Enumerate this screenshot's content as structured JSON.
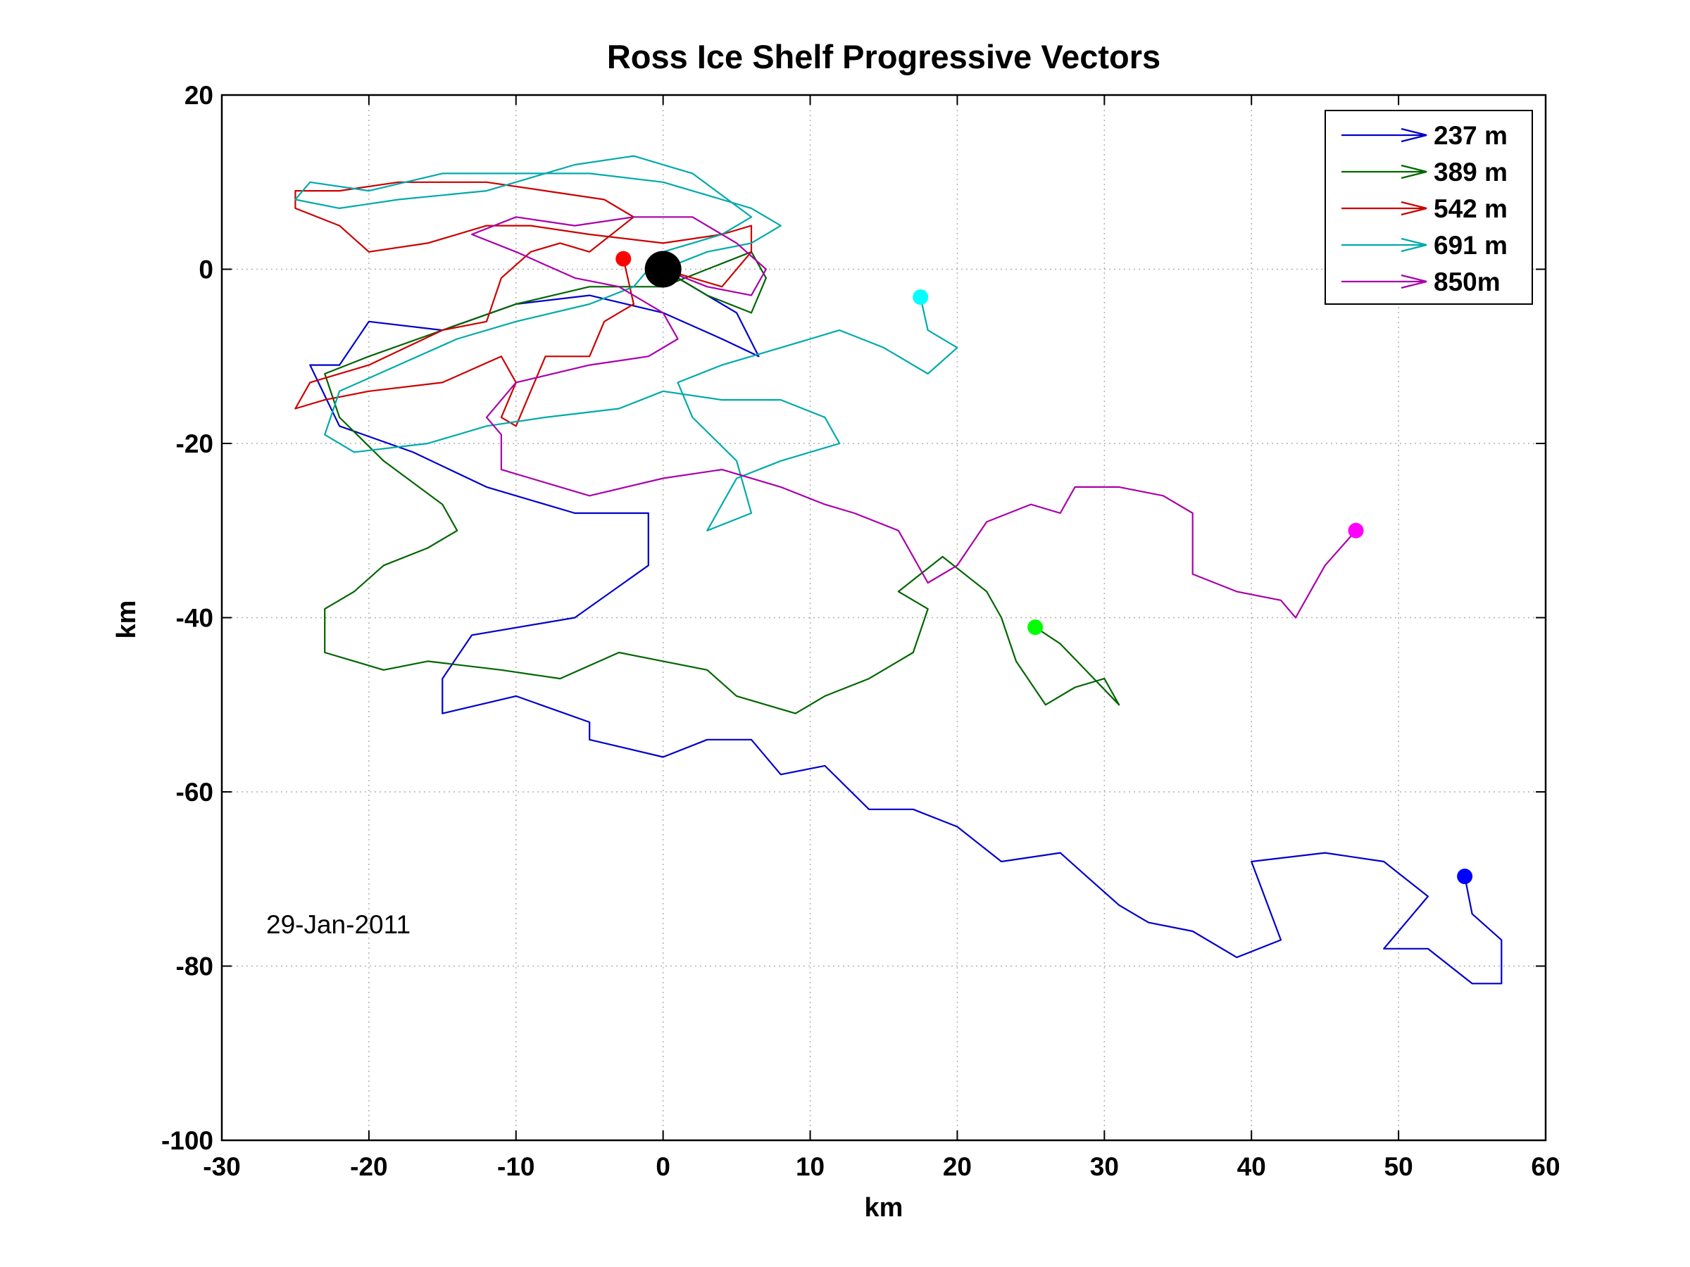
{
  "chart_data": {
    "type": "line",
    "title": "Ross Ice Shelf Progressive Vectors",
    "xlabel": "km",
    "ylabel": "km",
    "xlim": [
      -30,
      60
    ],
    "ylim": [
      -100,
      20
    ],
    "xticks": [
      -30,
      -20,
      -10,
      0,
      10,
      20,
      30,
      40,
      50,
      60
    ],
    "yticks": [
      20,
      0,
      -20,
      -40,
      -60,
      -80,
      -100
    ],
    "x_tick_labels": [
      "-30",
      "-20",
      "-10",
      "0",
      "10",
      "20",
      "30",
      "40",
      "50",
      "60"
    ],
    "y_tick_labels": [
      "20",
      "0",
      "-20",
      "-40",
      "-60",
      "-80",
      "-100"
    ],
    "grid": true,
    "legend_position": "top-right",
    "annotation": "29-Jan-2011",
    "origin_marker": {
      "x": 0,
      "y": 0,
      "color": "#000000"
    },
    "series": [
      {
        "name": "237 m",
        "color": "#0000cc",
        "end_color": "#0000ff",
        "points": [
          [
            0,
            0
          ],
          [
            2,
            -2
          ],
          [
            5,
            -5
          ],
          [
            6.5,
            -10
          ],
          [
            4,
            -8
          ],
          [
            0,
            -5
          ],
          [
            -5,
            -3
          ],
          [
            -10,
            -4
          ],
          [
            -15,
            -7
          ],
          [
            -20,
            -6
          ],
          [
            -22,
            -11
          ],
          [
            -24,
            -11
          ],
          [
            -22,
            -18
          ],
          [
            -17,
            -21
          ],
          [
            -12,
            -25
          ],
          [
            -6,
            -28
          ],
          [
            -1,
            -28
          ],
          [
            -1,
            -34
          ],
          [
            -6,
            -40
          ],
          [
            -13,
            -42
          ],
          [
            -15,
            -47
          ],
          [
            -15,
            -51
          ],
          [
            -10,
            -49
          ],
          [
            -5,
            -52
          ],
          [
            -5,
            -54
          ],
          [
            0,
            -56
          ],
          [
            3,
            -54
          ],
          [
            6,
            -54
          ],
          [
            8,
            -58
          ],
          [
            11,
            -57
          ],
          [
            14,
            -62
          ],
          [
            17,
            -62
          ],
          [
            20,
            -64
          ],
          [
            23,
            -68
          ],
          [
            27,
            -67
          ],
          [
            29,
            -70
          ],
          [
            31,
            -73
          ],
          [
            33,
            -75
          ],
          [
            36,
            -76
          ],
          [
            39,
            -79
          ],
          [
            42,
            -77
          ],
          [
            40,
            -68
          ],
          [
            45,
            -67
          ],
          [
            49,
            -68
          ],
          [
            52,
            -72
          ],
          [
            49,
            -78
          ],
          [
            52,
            -78
          ],
          [
            55,
            -82
          ],
          [
            57,
            -82
          ],
          [
            57,
            -77
          ],
          [
            55,
            -74
          ],
          [
            54.5,
            -69.7
          ]
        ]
      },
      {
        "name": "389 m",
        "color": "#006600",
        "end_color": "#00ff00",
        "points": [
          [
            0,
            0
          ],
          [
            3,
            -3
          ],
          [
            6,
            -5
          ],
          [
            7,
            -1
          ],
          [
            6,
            2
          ],
          [
            3,
            0
          ],
          [
            0,
            -2
          ],
          [
            -5,
            -2
          ],
          [
            -10,
            -4
          ],
          [
            -15,
            -7
          ],
          [
            -20,
            -10
          ],
          [
            -23,
            -12
          ],
          [
            -22,
            -17
          ],
          [
            -19,
            -22
          ],
          [
            -15,
            -27
          ],
          [
            -14,
            -30
          ],
          [
            -16,
            -32
          ],
          [
            -19,
            -34
          ],
          [
            -21,
            -37
          ],
          [
            -23,
            -39
          ],
          [
            -23,
            -44
          ],
          [
            -19,
            -46
          ],
          [
            -16,
            -45
          ],
          [
            -11,
            -46
          ],
          [
            -7,
            -47
          ],
          [
            -3,
            -44
          ],
          [
            0,
            -45
          ],
          [
            3,
            -46
          ],
          [
            5,
            -49
          ],
          [
            9,
            -51
          ],
          [
            11,
            -49
          ],
          [
            14,
            -47
          ],
          [
            17,
            -44
          ],
          [
            18,
            -39
          ],
          [
            16,
            -37
          ],
          [
            19,
            -33
          ],
          [
            22,
            -37
          ],
          [
            23,
            -40
          ],
          [
            24,
            -45
          ],
          [
            26,
            -50
          ],
          [
            28,
            -48
          ],
          [
            30,
            -47
          ],
          [
            31,
            -50
          ],
          [
            27,
            -43
          ],
          [
            25.3,
            -41.1
          ]
        ]
      },
      {
        "name": "542 m",
        "color": "#cc0000",
        "end_color": "#ff0000",
        "points": [
          [
            0,
            0
          ],
          [
            4,
            -2
          ],
          [
            6,
            2
          ],
          [
            6,
            5
          ],
          [
            4,
            4
          ],
          [
            0,
            3
          ],
          [
            -5,
            4
          ],
          [
            -9,
            5
          ],
          [
            -12,
            5
          ],
          [
            -16,
            3
          ],
          [
            -20,
            2
          ],
          [
            -22,
            5
          ],
          [
            -25,
            7
          ],
          [
            -25,
            9
          ],
          [
            -22,
            9
          ],
          [
            -18,
            10
          ],
          [
            -12,
            10
          ],
          [
            -8,
            9
          ],
          [
            -4,
            8
          ],
          [
            -2,
            6
          ],
          [
            -5,
            2
          ],
          [
            -7,
            3
          ],
          [
            -9,
            2
          ],
          [
            -11,
            -1
          ],
          [
            -12,
            -6
          ],
          [
            -15,
            -7
          ],
          [
            -20,
            -11
          ],
          [
            -24,
            -13
          ],
          [
            -25,
            -16
          ],
          [
            -23,
            -15
          ],
          [
            -20,
            -14
          ],
          [
            -15,
            -13
          ],
          [
            -11,
            -10
          ],
          [
            -10,
            -13
          ],
          [
            -11,
            -17
          ],
          [
            -10,
            -18
          ],
          [
            -9,
            -14
          ],
          [
            -8,
            -10
          ],
          [
            -5,
            -10
          ],
          [
            -4,
            -6
          ],
          [
            -2,
            -4
          ],
          [
            -2.7,
            1.2
          ]
        ]
      },
      {
        "name": "691 m",
        "color": "#00aaaa",
        "end_color": "#00ffff",
        "points": [
          [
            0,
            0
          ],
          [
            3,
            2
          ],
          [
            6,
            3
          ],
          [
            8,
            5
          ],
          [
            6,
            7
          ],
          [
            4,
            8
          ],
          [
            0,
            10
          ],
          [
            -5,
            11
          ],
          [
            -10,
            11
          ],
          [
            -15,
            11
          ],
          [
            -20,
            9
          ],
          [
            -24,
            10
          ],
          [
            -25,
            8
          ],
          [
            -22,
            7
          ],
          [
            -18,
            8
          ],
          [
            -12,
            9
          ],
          [
            -6,
            12
          ],
          [
            -2,
            13
          ],
          [
            2,
            11
          ],
          [
            6,
            6
          ],
          [
            4,
            4
          ],
          [
            0,
            2
          ],
          [
            -2,
            -2
          ],
          [
            -5,
            -4
          ],
          [
            -10,
            -6
          ],
          [
            -14,
            -8
          ],
          [
            -18,
            -11
          ],
          [
            -22,
            -14
          ],
          [
            -23,
            -19
          ],
          [
            -21,
            -21
          ],
          [
            -16,
            -20
          ],
          [
            -12,
            -18
          ],
          [
            -8,
            -17
          ],
          [
            -3,
            -16
          ],
          [
            0,
            -14
          ],
          [
            4,
            -15
          ],
          [
            8,
            -15
          ],
          [
            11,
            -17
          ],
          [
            12,
            -20
          ],
          [
            8,
            -22
          ],
          [
            5,
            -24
          ],
          [
            4,
            -27
          ],
          [
            3,
            -30
          ],
          [
            6,
            -28
          ],
          [
            5,
            -22
          ],
          [
            2,
            -17
          ],
          [
            1,
            -13
          ],
          [
            4,
            -11
          ],
          [
            8,
            -9
          ],
          [
            12,
            -7
          ],
          [
            15,
            -9
          ],
          [
            18,
            -12
          ],
          [
            20,
            -9
          ],
          [
            18,
            -7
          ],
          [
            17.5,
            -3.2
          ]
        ]
      },
      {
        "name": "850m",
        "color": "#aa00aa",
        "end_color": "#ff00ff",
        "points": [
          [
            0,
            0
          ],
          [
            3,
            -2
          ],
          [
            6,
            -3
          ],
          [
            7,
            0
          ],
          [
            5,
            3
          ],
          [
            2,
            6
          ],
          [
            -2,
            6
          ],
          [
            -6,
            5
          ],
          [
            -10,
            6
          ],
          [
            -13,
            4
          ],
          [
            -10,
            2
          ],
          [
            -6,
            -1
          ],
          [
            -3,
            -2
          ],
          [
            0,
            -5
          ],
          [
            1,
            -8
          ],
          [
            -1,
            -10
          ],
          [
            -5,
            -11
          ],
          [
            -10,
            -13
          ],
          [
            -12,
            -17
          ],
          [
            -11,
            -19
          ],
          [
            -11,
            -23
          ],
          [
            -9,
            -24
          ],
          [
            -5,
            -26
          ],
          [
            0,
            -24
          ],
          [
            4,
            -23
          ],
          [
            8,
            -25
          ],
          [
            11,
            -27
          ],
          [
            13,
            -28
          ],
          [
            16,
            -30
          ],
          [
            18,
            -36
          ],
          [
            20,
            -34
          ],
          [
            22,
            -29
          ],
          [
            25,
            -27
          ],
          [
            27,
            -28
          ],
          [
            28,
            -25
          ],
          [
            31,
            -25
          ],
          [
            34,
            -26
          ],
          [
            36,
            -28
          ],
          [
            36,
            -35
          ],
          [
            39,
            -37
          ],
          [
            42,
            -38
          ],
          [
            43,
            -40
          ],
          [
            44,
            -37
          ],
          [
            45,
            -34
          ],
          [
            47.1,
            -30
          ]
        ]
      }
    ]
  }
}
